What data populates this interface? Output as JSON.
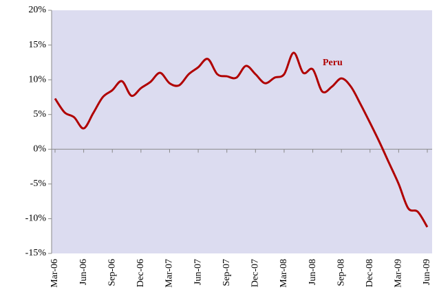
{
  "chart_data": {
    "type": "line",
    "categories": [
      "Mar-06",
      null,
      null,
      "Jun-06",
      null,
      null,
      "Sep-06",
      null,
      null,
      "Dec-06",
      null,
      null,
      "Mar-07",
      null,
      null,
      "Jun-07",
      null,
      null,
      "Sep-07",
      null,
      null,
      "Dec-07",
      null,
      null,
      "Mar-08",
      null,
      null,
      "Jun-08",
      null,
      null,
      "Sep-08",
      null,
      null,
      "Dec-08",
      null,
      null,
      "Mar-09",
      null,
      null,
      "Jun-09"
    ],
    "series": [
      {
        "name": "Peru",
        "color": "#b00000",
        "values": [
          7.3,
          5.3,
          4.6,
          3.0,
          5.2,
          7.5,
          8.5,
          9.8,
          7.7,
          8.8,
          9.7,
          11.0,
          9.5,
          9.2,
          10.8,
          11.8,
          13.0,
          10.8,
          10.5,
          10.3,
          12.0,
          10.8,
          9.5,
          10.3,
          10.8,
          13.9,
          11.0,
          11.5,
          8.3,
          9.0,
          10.2,
          9.0,
          6.5,
          3.8,
          1.0,
          -2.0,
          -5.0,
          -8.5,
          -9.0,
          -11.2
        ]
      }
    ],
    "ylim": [
      -15,
      20
    ],
    "yticks": [
      {
        "value": -15,
        "label": "-15%"
      },
      {
        "value": -10,
        "label": "-10%"
      },
      {
        "value": -5,
        "label": "-5%"
      },
      {
        "value": 0,
        "label": "0%"
      },
      {
        "value": 5,
        "label": "5%"
      },
      {
        "value": 10,
        "label": "10%"
      },
      {
        "value": 15,
        "label": "15%"
      },
      {
        "value": 20,
        "label": "20%"
      }
    ],
    "background": "#dcdcf0"
  }
}
